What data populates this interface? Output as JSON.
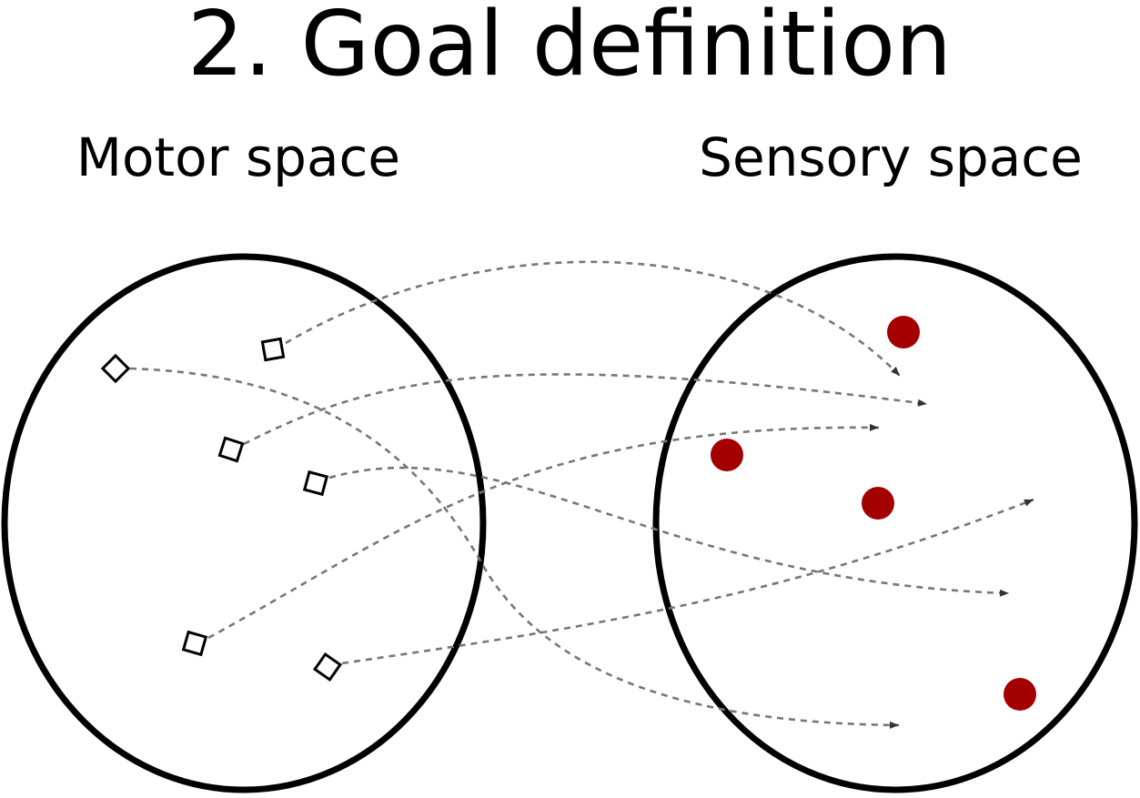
{
  "title": "2. Goal definition",
  "motor_space_label": "Motor space",
  "sensory_space_label": "Sensory space",
  "colors": {
    "outline": "#000000",
    "arrow": "#777777",
    "goal": "#a30000"
  },
  "icons": {
    "motor_command": "square-marker",
    "sensory_goal": "filled-circle",
    "mapping": "dashed-arrow"
  }
}
